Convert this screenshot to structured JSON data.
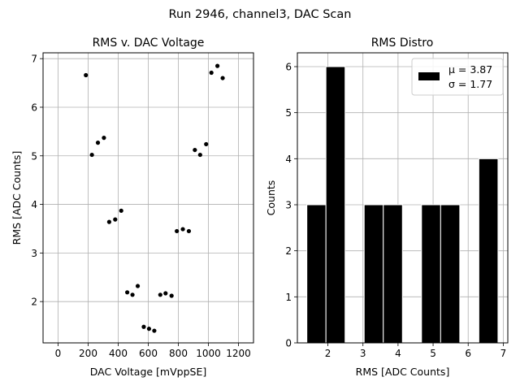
{
  "figure": {
    "suptitle": "Run 2946, channel3, DAC Scan"
  },
  "chart_data": [
    {
      "type": "scatter",
      "title": "RMS v. DAC Voltage",
      "xlabel": "DAC Voltage [mVppSE]",
      "ylabel": "RMS [ADC Counts]",
      "xlim": [
        -100,
        1300
      ],
      "ylim": [
        1.15,
        7.12
      ],
      "xticks": [
        0,
        200,
        400,
        600,
        800,
        1000,
        1200
      ],
      "yticks": [
        2,
        3,
        4,
        5,
        6,
        7
      ],
      "grid": true,
      "marker_color": "#000000",
      "points": [
        {
          "x": 185,
          "y": 6.66
        },
        {
          "x": 225,
          "y": 5.02
        },
        {
          "x": 265,
          "y": 5.27
        },
        {
          "x": 305,
          "y": 5.37
        },
        {
          "x": 340,
          "y": 3.64
        },
        {
          "x": 380,
          "y": 3.69
        },
        {
          "x": 420,
          "y": 3.87
        },
        {
          "x": 460,
          "y": 2.19
        },
        {
          "x": 495,
          "y": 2.14
        },
        {
          "x": 530,
          "y": 2.32
        },
        {
          "x": 570,
          "y": 1.48
        },
        {
          "x": 605,
          "y": 1.44
        },
        {
          "x": 640,
          "y": 1.4
        },
        {
          "x": 680,
          "y": 2.14
        },
        {
          "x": 715,
          "y": 2.17
        },
        {
          "x": 755,
          "y": 2.12
        },
        {
          "x": 790,
          "y": 3.45
        },
        {
          "x": 830,
          "y": 3.49
        },
        {
          "x": 870,
          "y": 3.45
        },
        {
          "x": 910,
          "y": 5.12
        },
        {
          "x": 945,
          "y": 5.02
        },
        {
          "x": 985,
          "y": 5.24
        },
        {
          "x": 1020,
          "y": 6.71
        },
        {
          "x": 1060,
          "y": 6.85
        },
        {
          "x": 1095,
          "y": 6.6
        }
      ]
    },
    {
      "type": "bar",
      "title": "RMS Distro",
      "xlabel": "RMS [ADC Counts]",
      "ylabel": "Counts",
      "xlim": [
        1.13,
        7.13
      ],
      "ylim": [
        0,
        6.3
      ],
      "xticks": [
        2,
        3,
        4,
        5,
        6,
        7
      ],
      "yticks": [
        0,
        1,
        2,
        3,
        4,
        5,
        6
      ],
      "grid": true,
      "bar_color": "#000000",
      "edge_color": "#ffffff",
      "bins": [
        {
          "x0": 1.4,
          "x1": 1.945,
          "count": 3
        },
        {
          "x0": 1.945,
          "x1": 2.49,
          "count": 6
        },
        {
          "x0": 2.49,
          "x1": 3.035,
          "count": 0
        },
        {
          "x0": 3.035,
          "x1": 3.58,
          "count": 3
        },
        {
          "x0": 3.58,
          "x1": 4.125,
          "count": 3
        },
        {
          "x0": 4.125,
          "x1": 4.67,
          "count": 0
        },
        {
          "x0": 4.67,
          "x1": 5.215,
          "count": 3
        },
        {
          "x0": 5.215,
          "x1": 5.76,
          "count": 3
        },
        {
          "x0": 5.76,
          "x1": 6.305,
          "count": 0
        },
        {
          "x0": 6.305,
          "x1": 6.85,
          "count": 4
        }
      ],
      "legend": {
        "placement": "upper-right",
        "mu_label": "μ = 3.87",
        "sigma_label": "σ = 1.77"
      }
    }
  ]
}
